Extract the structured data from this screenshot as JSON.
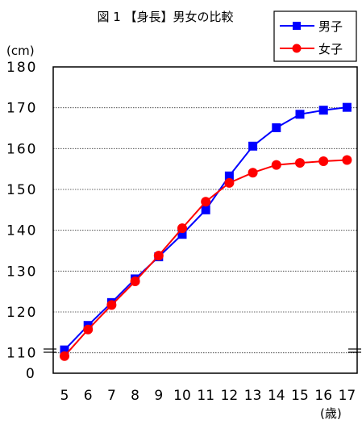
{
  "chart_data": {
    "type": "line",
    "title": "図 1 【身長】男女の比較",
    "ylabel": "(cm)",
    "xlabel": "(歳)",
    "categories": [
      "5",
      "6",
      "7",
      "8",
      "9",
      "10",
      "11",
      "12",
      "13",
      "14",
      "15",
      "16",
      "17"
    ],
    "y_tick_labels": [
      "0",
      "110",
      "120",
      "130",
      "140",
      "150",
      "160",
      "170",
      "180"
    ],
    "ylim": [
      105,
      180
    ],
    "y_axis_break": true,
    "grid": true,
    "legend_position": "top-right",
    "series": [
      {
        "name": "男子",
        "color": "#0000ff",
        "marker": "square",
        "values": [
          110.7,
          116.7,
          122.3,
          128.1,
          133.5,
          139.0,
          145.0,
          153.3,
          160.6,
          165.1,
          168.4,
          169.4,
          170.1
        ]
      },
      {
        "name": "女子",
        "color": "#ff0000",
        "marker": "circle",
        "values": [
          109.2,
          115.7,
          121.7,
          127.5,
          133.8,
          140.5,
          147.0,
          151.6,
          154.1,
          156.0,
          156.5,
          156.9,
          157.2
        ]
      }
    ]
  }
}
